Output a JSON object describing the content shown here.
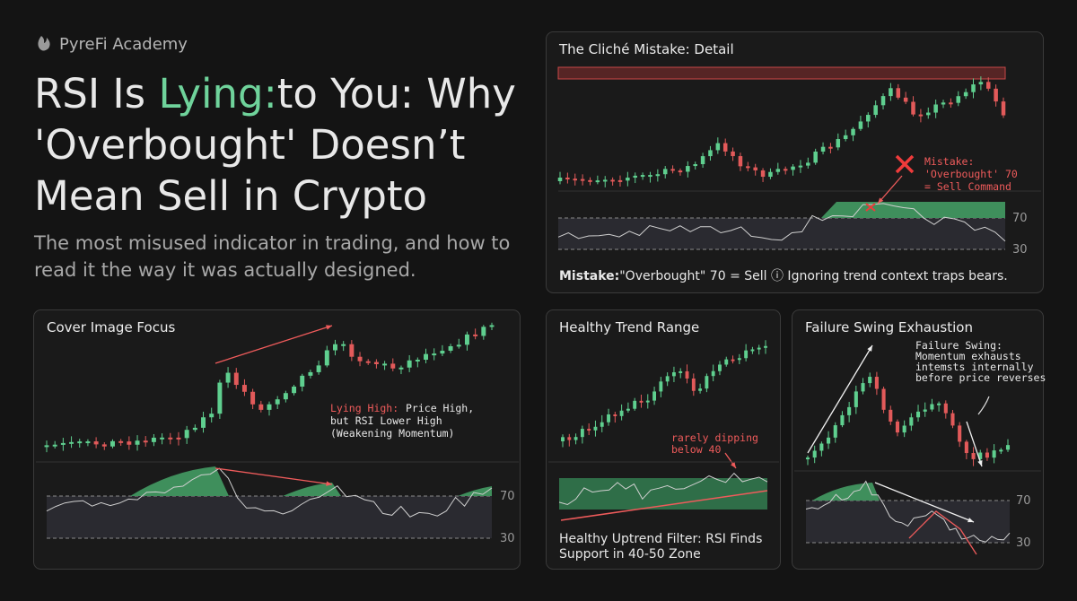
{
  "brand": "PyreFi Academy",
  "title": {
    "line1_before": "RSI Is ",
    "line1_highlight": "Lying:",
    "line1_after": "to You: Why",
    "line2": "'Overbought' Doesn’t",
    "line3": "Mean Sell in Crypto"
  },
  "subtitle": [
    "The most misused indicator in trading, and how to",
    "read it the way it was actually designed."
  ],
  "panels": [
    {
      "title": "The Cliché Mistake: Detail",
      "annotation": [
        "Mistake:",
        "'Overbought' 70",
        "= Sell Command"
      ],
      "rsi_labels": [
        70,
        30
      ],
      "caption_bold": "Mistake:",
      "caption": "\"Overbought\" 70 = Sell ⓘ Ignoring trend context traps bears."
    },
    {
      "title": "Cover Image Focus",
      "annotation_highlight": "Lying High:",
      "annotation": [
        "Price High,",
        "but RSI Lower High",
        "(Weakening Momentum)"
      ],
      "rsi_labels": [
        70,
        30
      ]
    },
    {
      "title": "Healthy Trend Range",
      "annotation": [
        "rarely dipping",
        "below 40"
      ],
      "caption": [
        "Healthy Uptrend Filter: RSI Finds",
        "Support in 40-50 Zone"
      ]
    },
    {
      "title": "Failure Swing Exhaustion",
      "annotation": [
        "Failure Swing:",
        "Momentum exhausts",
        "intemsts internally",
        "before price reverses"
      ],
      "rsi_labels": [
        70,
        30
      ]
    }
  ]
}
